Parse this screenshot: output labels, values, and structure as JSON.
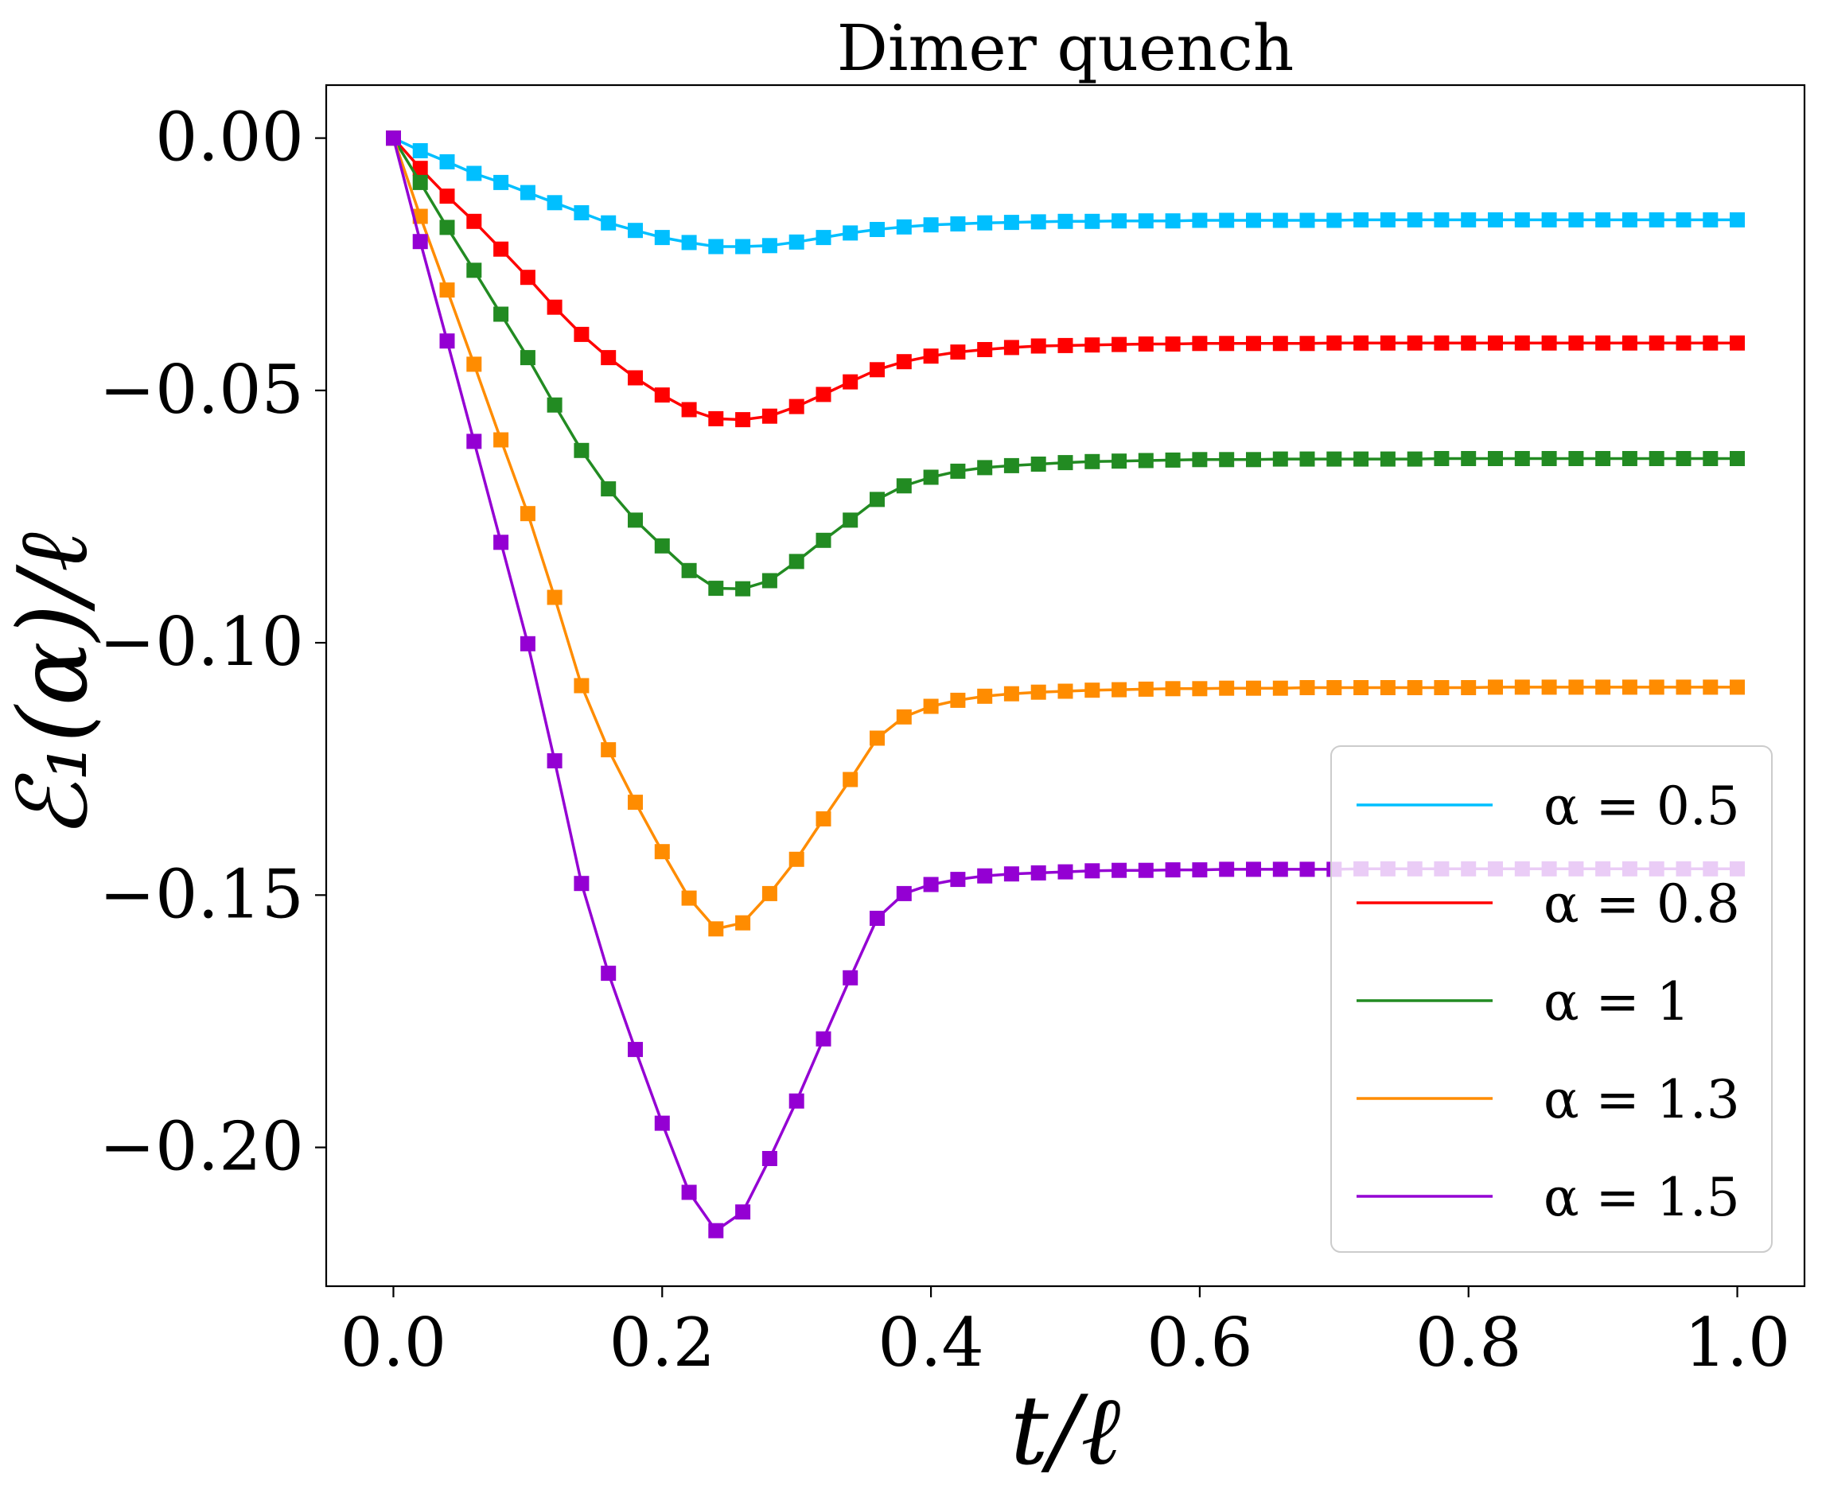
{
  "chart_data": {
    "type": "line",
    "title": "Dimer quench",
    "xlabel": "t/ℓ",
    "ylabel": "ℰ₁(α)/ℓ",
    "xlim": [
      -0.05,
      1.05
    ],
    "ylim": [
      -0.2275,
      0.0105
    ],
    "xticks": [
      0.0,
      0.2,
      0.4,
      0.6,
      0.8,
      1.0
    ],
    "xtick_labels": [
      "0.0",
      "0.2",
      "0.4",
      "0.6",
      "0.8",
      "1.0"
    ],
    "yticks": [
      0.0,
      -0.05,
      -0.1,
      -0.15,
      -0.2
    ],
    "ytick_labels": [
      "0.00",
      "−0.05",
      "−0.10",
      "−0.15",
      "−0.20"
    ],
    "grid": false,
    "legend_position": "lower-right",
    "marker": "square",
    "x": [
      0.0,
      0.02,
      0.04,
      0.06,
      0.08,
      0.1,
      0.12,
      0.14,
      0.16,
      0.18,
      0.2,
      0.22,
      0.24,
      0.26,
      0.28,
      0.3,
      0.32,
      0.34,
      0.36,
      0.38,
      0.4,
      0.42,
      0.44,
      0.46,
      0.48,
      0.5,
      0.52,
      0.54,
      0.56,
      0.58,
      0.6,
      0.62,
      0.64,
      0.66,
      0.68,
      0.7,
      0.72,
      0.74,
      0.76,
      0.78,
      0.8,
      0.82,
      0.84,
      0.86,
      0.88,
      0.9,
      0.92,
      0.94,
      0.96,
      0.98,
      1.0
    ],
    "series": [
      {
        "name": "α = 0.5",
        "color": "#00bfff",
        "values": [
          0.0,
          -0.0025,
          -0.0047,
          -0.007,
          -0.0088,
          -0.0108,
          -0.0128,
          -0.0148,
          -0.0168,
          -0.0183,
          -0.0197,
          -0.0207,
          -0.0215,
          -0.0215,
          -0.0213,
          -0.0206,
          -0.0197,
          -0.0188,
          -0.0181,
          -0.0176,
          -0.0172,
          -0.017,
          -0.0168,
          -0.0167,
          -0.0166,
          -0.0165,
          -0.0165,
          -0.0164,
          -0.0164,
          -0.0164,
          -0.0163,
          -0.0163,
          -0.0163,
          -0.0163,
          -0.0163,
          -0.0163,
          -0.0162,
          -0.0162,
          -0.0162,
          -0.0162,
          -0.0162,
          -0.0162,
          -0.0162,
          -0.0162,
          -0.0162,
          -0.0162,
          -0.0162,
          -0.0162,
          -0.0162,
          -0.0162,
          -0.0162
        ]
      },
      {
        "name": "α = 0.8",
        "color": "#ff0000",
        "values": [
          0.0,
          -0.006,
          -0.0115,
          -0.0165,
          -0.022,
          -0.0276,
          -0.0335,
          -0.0389,
          -0.0435,
          -0.0475,
          -0.0509,
          -0.0538,
          -0.0556,
          -0.0558,
          -0.0551,
          -0.0532,
          -0.0508,
          -0.0483,
          -0.0459,
          -0.0443,
          -0.0432,
          -0.0424,
          -0.0419,
          -0.0415,
          -0.0412,
          -0.0411,
          -0.041,
          -0.0409,
          -0.0408,
          -0.0408,
          -0.0407,
          -0.0407,
          -0.0407,
          -0.0407,
          -0.0407,
          -0.0406,
          -0.0406,
          -0.0406,
          -0.0406,
          -0.0406,
          -0.0406,
          -0.0406,
          -0.0406,
          -0.0406,
          -0.0406,
          -0.0406,
          -0.0406,
          -0.0406,
          -0.0406,
          -0.0406,
          -0.0406
        ]
      },
      {
        "name": "α = 1",
        "color": "#228b22",
        "values": [
          0.0,
          -0.0088,
          -0.0177,
          -0.0262,
          -0.0349,
          -0.0435,
          -0.0529,
          -0.0619,
          -0.0695,
          -0.0757,
          -0.0808,
          -0.0857,
          -0.0892,
          -0.0893,
          -0.0877,
          -0.0839,
          -0.0797,
          -0.0757,
          -0.0716,
          -0.0689,
          -0.0672,
          -0.066,
          -0.0653,
          -0.0649,
          -0.0646,
          -0.0643,
          -0.0641,
          -0.064,
          -0.0639,
          -0.0638,
          -0.0637,
          -0.0637,
          -0.0637,
          -0.0636,
          -0.0636,
          -0.0636,
          -0.0636,
          -0.0636,
          -0.0636,
          -0.0635,
          -0.0635,
          -0.0635,
          -0.0635,
          -0.0635,
          -0.0635,
          -0.0635,
          -0.0635,
          -0.0635,
          -0.0635,
          -0.0635,
          -0.0635
        ]
      },
      {
        "name": "α = 1.3",
        "color": "#ff8c00",
        "values": [
          0.0,
          -0.0155,
          -0.0301,
          -0.0448,
          -0.0598,
          -0.0744,
          -0.091,
          -0.1085,
          -0.1212,
          -0.1316,
          -0.1414,
          -0.1506,
          -0.1567,
          -0.1555,
          -0.1497,
          -0.1429,
          -0.1349,
          -0.1271,
          -0.1189,
          -0.1147,
          -0.1126,
          -0.1114,
          -0.1106,
          -0.1101,
          -0.1098,
          -0.1096,
          -0.1094,
          -0.1093,
          -0.1092,
          -0.1091,
          -0.1091,
          -0.109,
          -0.109,
          -0.109,
          -0.1089,
          -0.1089,
          -0.1089,
          -0.1089,
          -0.1089,
          -0.1089,
          -0.1089,
          -0.1088,
          -0.1088,
          -0.1088,
          -0.1088,
          -0.1088,
          -0.1088,
          -0.1088,
          -0.1088,
          -0.1088,
          -0.1088
        ]
      },
      {
        "name": "α = 1.5",
        "color": "#9400d3",
        "values": [
          0.0,
          -0.0205,
          -0.0402,
          -0.0601,
          -0.0801,
          -0.1002,
          -0.1234,
          -0.1477,
          -0.1655,
          -0.1806,
          -0.1952,
          -0.2089,
          -0.2165,
          -0.2128,
          -0.2022,
          -0.1908,
          -0.1785,
          -0.1664,
          -0.1546,
          -0.1497,
          -0.1479,
          -0.1469,
          -0.1462,
          -0.1458,
          -0.1456,
          -0.1454,
          -0.1452,
          -0.1451,
          -0.1451,
          -0.145,
          -0.145,
          -0.1449,
          -0.1449,
          -0.1449,
          -0.1449,
          -0.1449,
          -0.1448,
          -0.1448,
          -0.1448,
          -0.1448,
          -0.1448,
          -0.1448,
          -0.1448,
          -0.1448,
          -0.1448,
          -0.1448,
          -0.1448,
          -0.1448,
          -0.1448,
          -0.1448,
          -0.1448
        ]
      }
    ]
  }
}
